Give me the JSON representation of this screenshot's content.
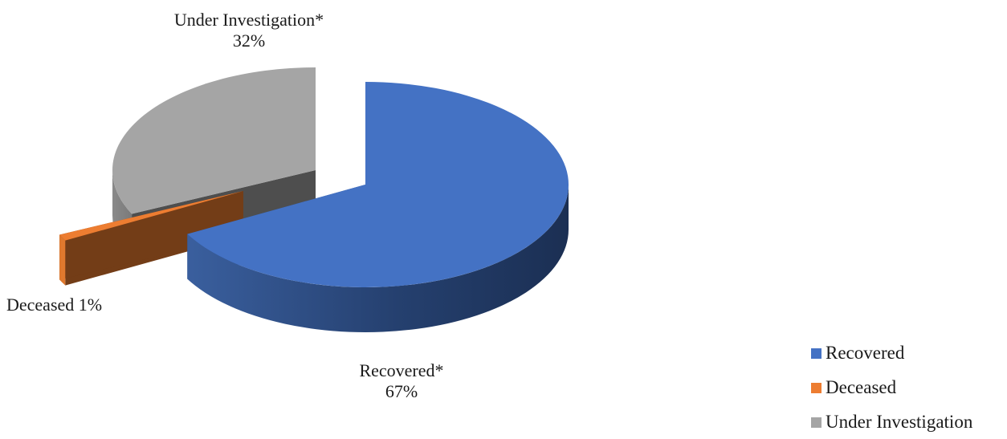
{
  "chart_data": {
    "type": "pie",
    "style": "3d-exploded",
    "categories": [
      "Recovered",
      "Deceased",
      "Under Investigation"
    ],
    "values": [
      67,
      1,
      32
    ],
    "unit": "%",
    "colors": [
      "#4472C4",
      "#ED7D31",
      "#A5A5A5"
    ],
    "data_labels": [
      {
        "name": "Recovered*",
        "value": "67%"
      },
      {
        "name": "Deceased",
        "value": "1%"
      },
      {
        "name": "Under Investigation*",
        "value": "32%"
      }
    ],
    "legend": {
      "position": "bottom-right",
      "entries": [
        "Recovered",
        "Deceased",
        "Under Investigation"
      ]
    }
  }
}
